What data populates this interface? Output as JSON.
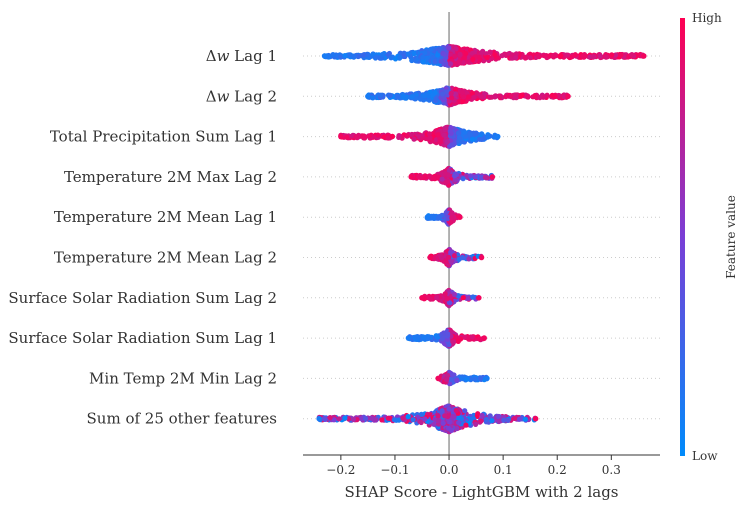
{
  "chart_data": {
    "type": "scatter",
    "subtype": "shap-beeswarm",
    "title": "",
    "xlabel": "SHAP Score - LightGBM with 2 lags",
    "xlim": [
      -0.27,
      0.39
    ],
    "xticks": [
      -0.2,
      -0.1,
      0.0,
      0.1,
      0.2,
      0.3
    ],
    "xtick_labels": [
      "−0.2",
      "−0.1",
      "0.0",
      "0.1",
      "0.2",
      "0.3"
    ],
    "zero_line": 0.0,
    "colorbar": {
      "label": "Feature value",
      "high_label": "High",
      "low_label": "Low",
      "low_color": "#008bfb",
      "mid_color": "#7a3ed6",
      "high_color": "#ff0052"
    },
    "features": [
      {
        "name": "Δw Lag 1",
        "label_main": "Δ",
        "label_var": "w",
        "label_rest": " Lag 1",
        "min": -0.23,
        "max": 0.36,
        "core": [
          -0.1,
          0.22
        ],
        "peak_half": 0.02,
        "neg_color": "low",
        "pos_color": "high"
      },
      {
        "name": "Δw Lag 2",
        "label_main": "Δ",
        "label_var": "w",
        "label_rest": " Lag 2",
        "min": -0.15,
        "max": 0.22,
        "core": [
          -0.09,
          0.16
        ],
        "peak_half": 0.018,
        "neg_color": "low",
        "pos_color": "high"
      },
      {
        "name": "Total Precipitation Sum Lag 1",
        "min": -0.2,
        "max": 0.09,
        "core": [
          -0.14,
          0.06
        ],
        "peak_half": 0.02,
        "neg_color": "high",
        "pos_color": "low"
      },
      {
        "name": "Temperature 2M Max Lag 2",
        "min": -0.07,
        "max": 0.08,
        "core": [
          -0.05,
          0.06
        ],
        "peak_half": 0.018,
        "neg_color": "high",
        "pos_color": "mixed"
      },
      {
        "name": "Temperature 2M Mean Lag 1",
        "min": -0.04,
        "max": 0.02,
        "core": [
          -0.035,
          0.015
        ],
        "peak_half": 0.016,
        "neg_color": "low",
        "pos_color": "high"
      },
      {
        "name": "Temperature 2M Mean Lag 2",
        "min": -0.035,
        "max": 0.06,
        "core": [
          -0.03,
          0.04
        ],
        "peak_half": 0.017,
        "neg_color": "high",
        "pos_color": "mixed"
      },
      {
        "name": "Surface Solar Radiation Sum Lag 2",
        "min": -0.05,
        "max": 0.055,
        "core": [
          -0.04,
          0.04
        ],
        "peak_half": 0.016,
        "neg_color": "high",
        "pos_color": "mixed"
      },
      {
        "name": "Surface Solar Radiation Sum Lag 1",
        "min": -0.075,
        "max": 0.065,
        "core": [
          -0.05,
          0.05
        ],
        "peak_half": 0.018,
        "neg_color": "low",
        "pos_color": "high"
      },
      {
        "name": "Min Temp 2M Min Lag 2",
        "min": -0.02,
        "max": 0.07,
        "core": [
          -0.02,
          0.05
        ],
        "peak_half": 0.012,
        "neg_color": "high",
        "pos_color": "low"
      },
      {
        "name": "Sum of 25 other features",
        "min": -0.24,
        "max": 0.16,
        "core": [
          -0.12,
          0.1
        ],
        "peak_half": 0.026,
        "neg_color": "mixed",
        "pos_color": "mixed"
      }
    ]
  }
}
